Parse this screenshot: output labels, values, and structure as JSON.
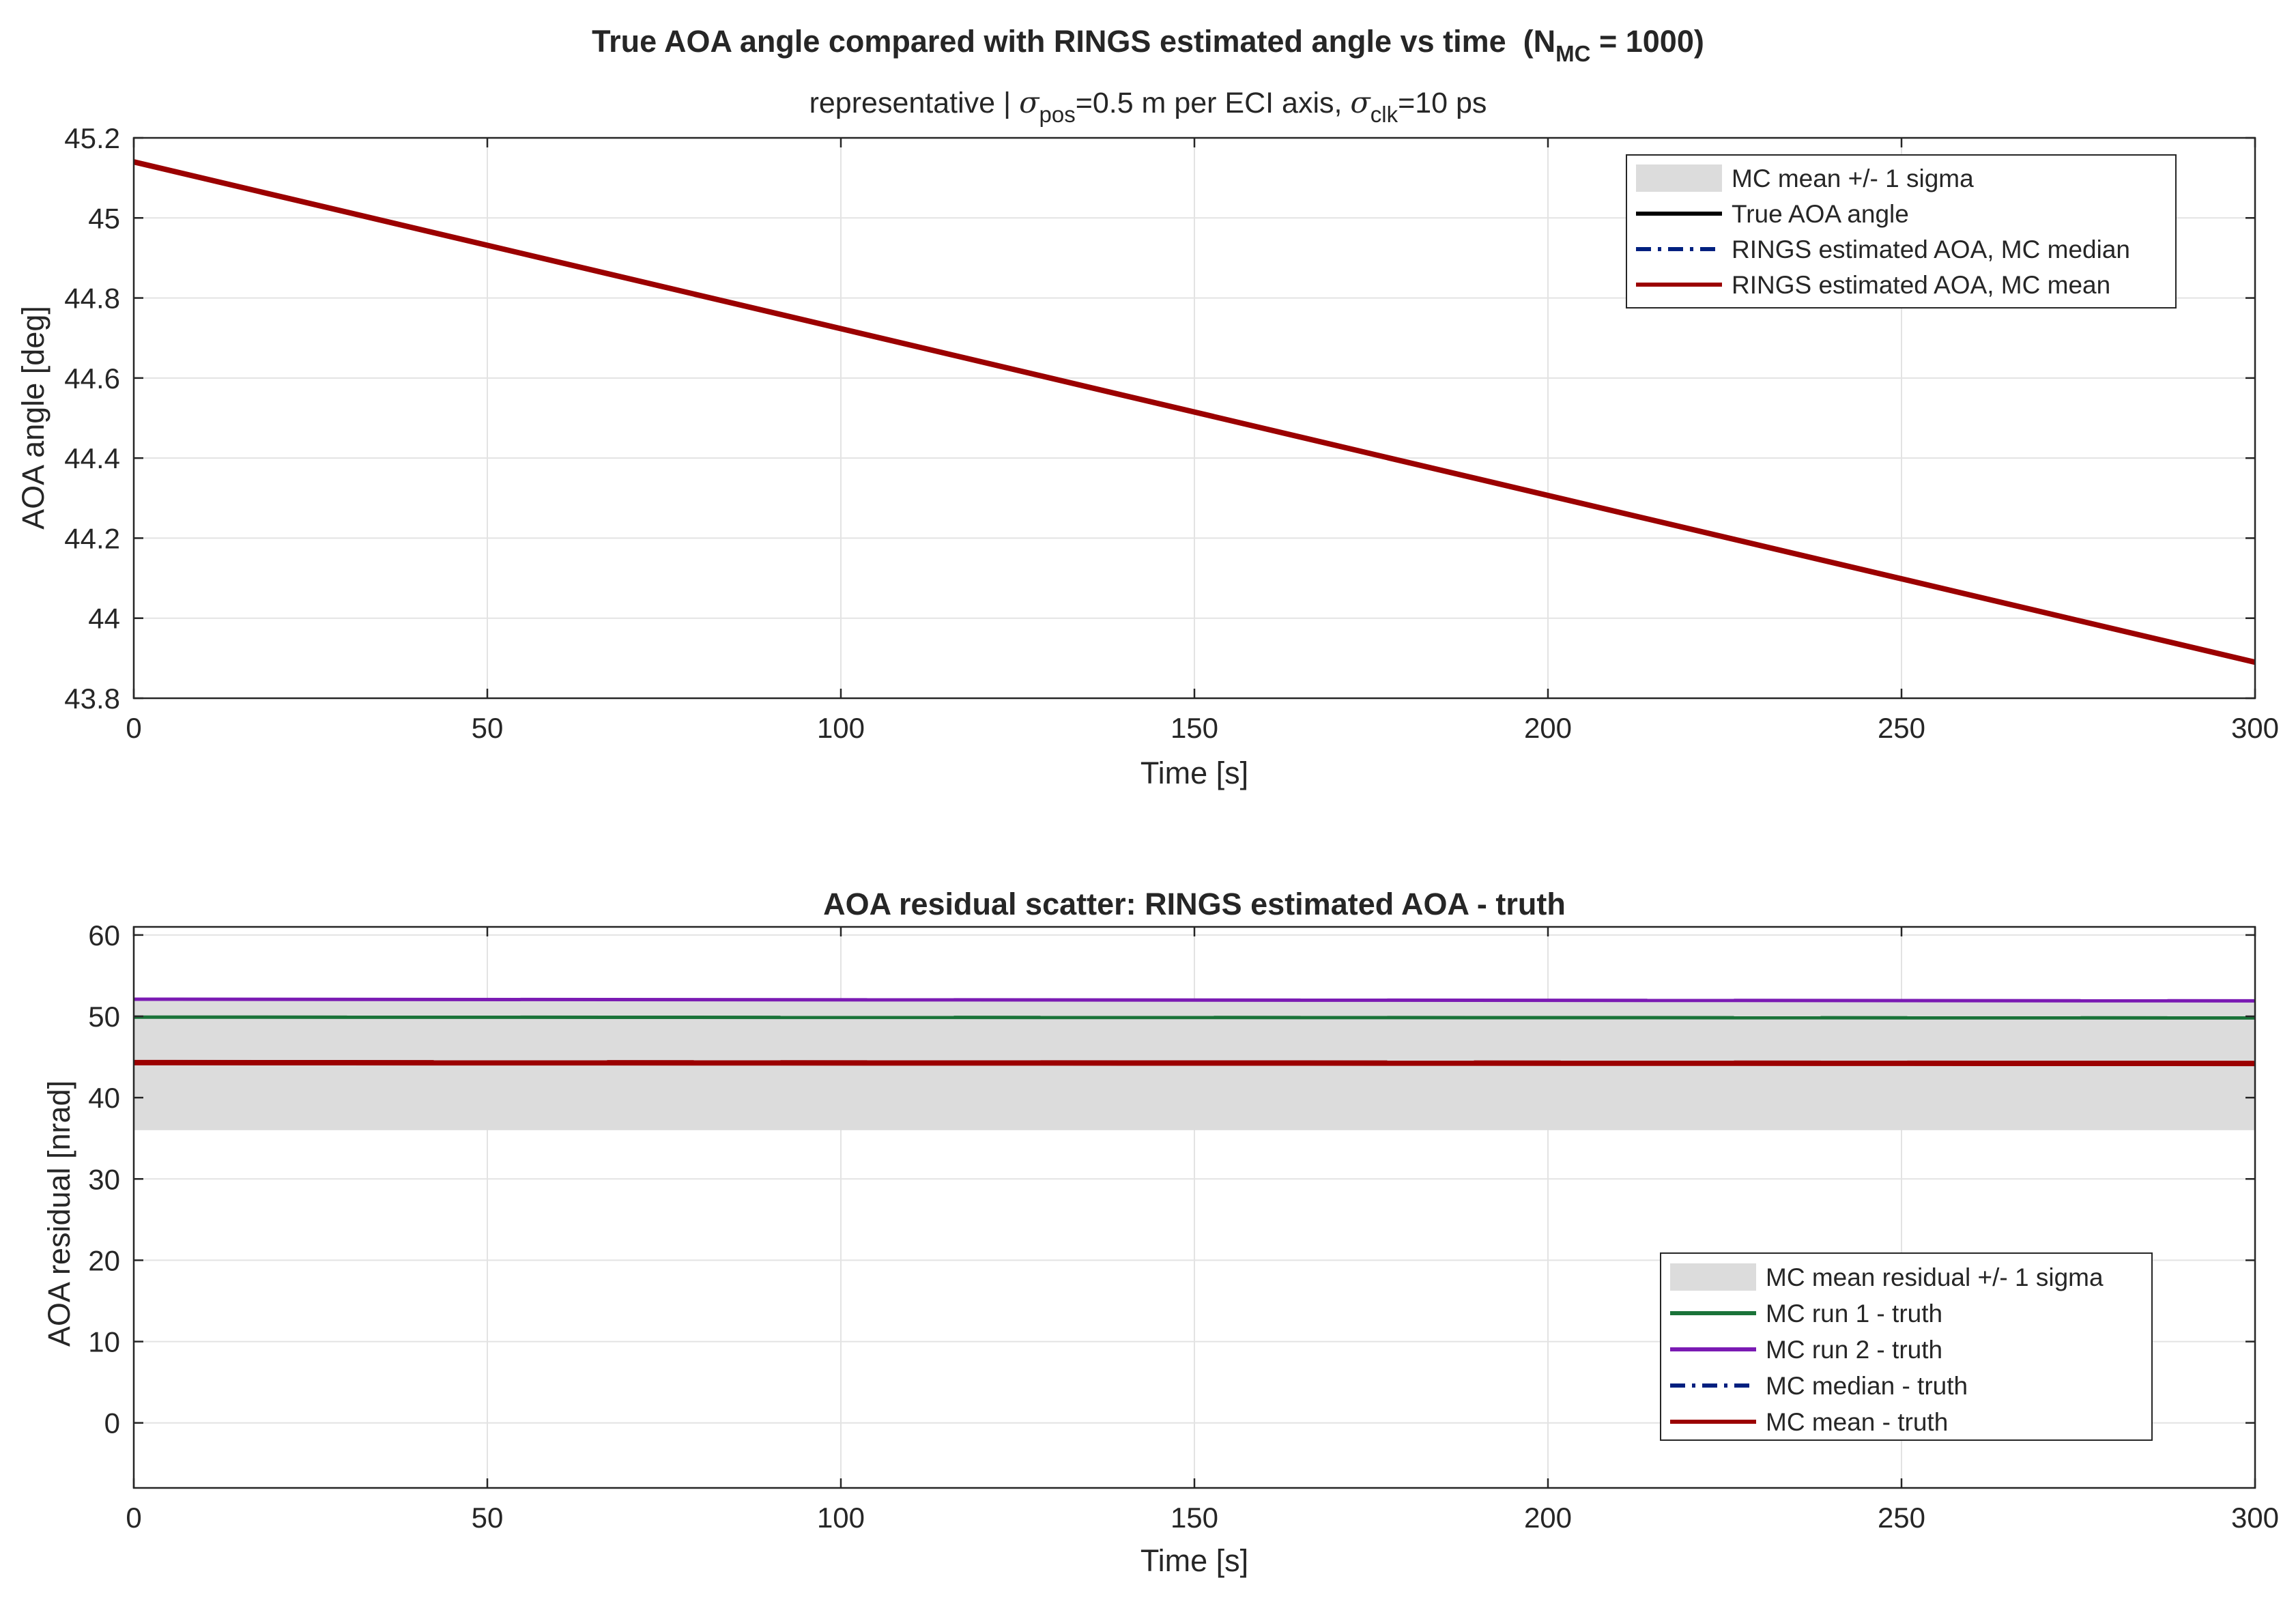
{
  "chart_data": [
    {
      "type": "line",
      "title": "True AOA angle compared with RINGS estimated angle vs time",
      "title_suffix": {
        "prefix": "(N",
        "subscript": "MC",
        "suffix": " = 1000)"
      },
      "subtitle": {
        "text1": "representative | ",
        "sym1": "σ",
        "sub1": "pos",
        "text2": "=0.5 m per ECI axis, ",
        "sym2": "σ",
        "sub2": "clk",
        "text3": "=10 ps"
      },
      "xlabel": "Time [s]",
      "ylabel": "AOA angle [deg]",
      "xlim": [
        0,
        300
      ],
      "ylim": [
        43.8,
        45.2
      ],
      "xticks": [
        0,
        50,
        100,
        150,
        200,
        250,
        300
      ],
      "yticks": [
        43.8,
        44,
        44.2,
        44.4,
        44.6,
        44.8,
        45,
        45.2
      ],
      "ytick_labels": [
        "43.8",
        "44",
        "44.2",
        "44.4",
        "44.6",
        "44.8",
        "45",
        "45.2"
      ],
      "grid": true,
      "legend_position": "top-right",
      "legend": [
        {
          "label": "MC mean +/- 1 sigma",
          "style": "patch",
          "color": "#dcdcdc"
        },
        {
          "label": "True AOA angle",
          "style": "solid",
          "color": "#000000"
        },
        {
          "label": "RINGS estimated AOA, MC median",
          "style": "dashdot",
          "color": "#00207f"
        },
        {
          "label": "RINGS estimated AOA, MC mean",
          "style": "solid",
          "color": "#9b0000"
        }
      ],
      "series": [
        {
          "name": "True AOA angle",
          "color": "#000000",
          "x": [
            0,
            300
          ],
          "y": [
            45.14,
            43.89
          ]
        },
        {
          "name": "RINGS estimated AOA, MC median",
          "color": "#00207f",
          "x": [
            0,
            300
          ],
          "y": [
            45.14,
            43.89
          ]
        },
        {
          "name": "RINGS estimated AOA, MC mean",
          "color": "#9b0000",
          "x": [
            0,
            300
          ],
          "y": [
            45.14,
            43.89
          ]
        }
      ]
    },
    {
      "type": "line",
      "title": "AOA residual scatter: RINGS estimated AOA - truth",
      "xlabel": "Time [s]",
      "ylabel": "AOA residual [nrad]",
      "xlim": [
        0,
        300
      ],
      "ylim": [
        -8,
        61
      ],
      "xticks": [
        0,
        50,
        100,
        150,
        200,
        250,
        300
      ],
      "yticks": [
        0,
        10,
        20,
        30,
        40,
        50,
        60
      ],
      "ytick_labels": [
        "0",
        "10",
        "20",
        "30",
        "40",
        "50",
        "60"
      ],
      "grid": true,
      "legend_position": "bottom-right",
      "band": {
        "name": "MC mean residual +/- 1 sigma",
        "lower": 36,
        "upper": 52,
        "color": "#dcdcdc"
      },
      "legend": [
        {
          "label": "MC mean residual +/- 1 sigma",
          "style": "patch",
          "color": "#dcdcdc"
        },
        {
          "label": "MC run 1 - truth",
          "style": "solid",
          "color": "#1a7339"
        },
        {
          "label": "MC run 2 - truth",
          "style": "solid",
          "color": "#7a1ab3"
        },
        {
          "label": "MC median - truth",
          "style": "dashdot",
          "color": "#00207f"
        },
        {
          "label": "MC mean - truth",
          "style": "solid",
          "color": "#9b0000"
        }
      ],
      "series": [
        {
          "name": "MC run 1 - truth",
          "color": "#1a7339",
          "x": [
            0,
            300
          ],
          "y": [
            49.9,
            49.8
          ]
        },
        {
          "name": "MC run 2 - truth",
          "color": "#7a1ab3",
          "x": [
            0,
            300
          ],
          "y": [
            52.1,
            51.9
          ]
        },
        {
          "name": "MC median - truth",
          "color": "#00207f",
          "x": [
            0,
            300
          ],
          "y": [
            44.3,
            44.2
          ]
        },
        {
          "name": "MC mean - truth",
          "color": "#9b0000",
          "x": [
            0,
            300
          ],
          "y": [
            44.3,
            44.2
          ]
        }
      ]
    }
  ]
}
